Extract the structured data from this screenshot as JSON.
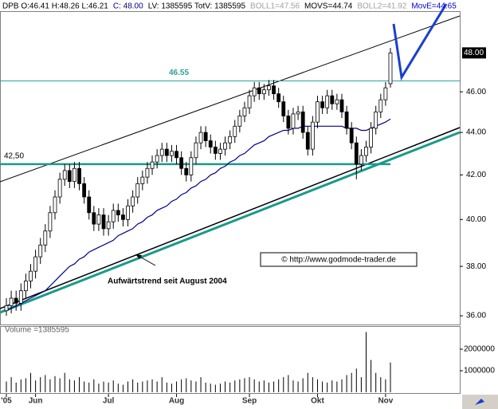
{
  "chart_data": {
    "type": "candlestick",
    "header": {
      "items": [
        "DPB O:46.41 H:48.26 L:46.21",
        "C: 48.00",
        "LV: 1385595 TotV: 1385595",
        "BOLL1=47.56",
        "MOVS=44.74",
        "BOLL2=41.92",
        "MovE=44.65"
      ],
      "colors": [
        "#000000",
        "#000080",
        "#000000",
        "#a0a0a0",
        "#000000",
        "#a0a0a0",
        "#0000cc"
      ]
    },
    "categories": [
      "'05",
      null,
      null,
      null,
      null,
      null,
      "Jun",
      null,
      null,
      null,
      null,
      null,
      null,
      null,
      null,
      null,
      null,
      null,
      null,
      null,
      null,
      "Jul",
      null,
      null,
      null,
      null,
      null,
      null,
      null,
      null,
      null,
      null,
      null,
      null,
      null,
      "Aug",
      null,
      null,
      null,
      null,
      null,
      null,
      null,
      null,
      null,
      null,
      null,
      null,
      null,
      null,
      "Sep",
      null,
      null,
      null,
      null,
      null,
      null,
      null,
      null,
      null,
      null,
      null,
      null,
      null,
      "Okt",
      null,
      null,
      null,
      null,
      null,
      null,
      null,
      null,
      null,
      null,
      null,
      null,
      null,
      "Nov",
      null
    ],
    "open": [
      36.2,
      36.4,
      36.7,
      36.5,
      37.0,
      37.4,
      37.8,
      38.4,
      38.9,
      39.5,
      40.3,
      41.0,
      41.8,
      42.2,
      41.7,
      42.3,
      41.6,
      41.0,
      40.3,
      39.8,
      40.2,
      39.6,
      39.9,
      40.4,
      40.2,
      40.0,
      40.6,
      41.0,
      41.6,
      41.9,
      42.3,
      42.6,
      42.9,
      43.2,
      42.9,
      43.1,
      42.8,
      42.3,
      42.0,
      42.8,
      43.5,
      44.0,
      43.6,
      43.3,
      43.0,
      43.2,
      43.5,
      43.8,
      44.3,
      44.8,
      45.2,
      45.8,
      46.2,
      45.9,
      46.1,
      46.3,
      45.9,
      45.5,
      44.8,
      44.2,
      44.9,
      45.0,
      44.0,
      43.2,
      44.5,
      45.5,
      45.2,
      45.8,
      45.4,
      45.6,
      45.0,
      44.2,
      43.5,
      42.5,
      42.9,
      43.3,
      44.2,
      45.0,
      45.6,
      46.41
    ],
    "high": [
      36.7,
      37.0,
      37.0,
      37.3,
      37.7,
      38.1,
      38.7,
      39.2,
      39.8,
      40.6,
      41.3,
      42.1,
      42.5,
      42.5,
      42.6,
      42.6,
      41.9,
      41.3,
      40.6,
      40.5,
      40.5,
      40.2,
      40.7,
      40.7,
      40.5,
      40.9,
      41.3,
      41.9,
      42.2,
      42.6,
      42.9,
      43.2,
      43.5,
      43.5,
      43.4,
      43.4,
      43.1,
      42.6,
      43.1,
      43.8,
      44.3,
      44.3,
      43.9,
      43.6,
      43.5,
      43.8,
      44.1,
      44.6,
      45.1,
      45.5,
      46.1,
      46.5,
      46.5,
      46.4,
      46.6,
      46.6,
      46.2,
      45.8,
      45.1,
      45.2,
      45.3,
      45.3,
      44.3,
      44.8,
      45.8,
      45.8,
      46.1,
      46.1,
      45.9,
      45.9,
      45.3,
      44.5,
      43.8,
      43.2,
      43.6,
      44.5,
      45.3,
      45.9,
      46.5,
      48.26
    ],
    "low": [
      36.0,
      36.1,
      36.2,
      36.2,
      36.7,
      37.1,
      37.5,
      38.1,
      38.6,
      39.2,
      40.0,
      40.7,
      41.5,
      41.4,
      41.4,
      41.3,
      40.7,
      40.0,
      39.5,
      39.5,
      39.3,
      39.3,
      39.6,
      39.9,
      39.7,
      39.7,
      40.3,
      40.7,
      41.3,
      41.6,
      42.0,
      42.3,
      42.6,
      42.6,
      42.6,
      42.5,
      42.0,
      41.7,
      41.7,
      42.5,
      43.2,
      43.3,
      43.0,
      42.7,
      42.7,
      42.9,
      43.2,
      43.5,
      44.0,
      44.5,
      44.9,
      45.5,
      45.6,
      45.6,
      45.8,
      45.6,
      45.2,
      44.5,
      43.9,
      43.9,
      44.6,
      43.7,
      42.9,
      42.9,
      44.2,
      44.9,
      44.9,
      45.1,
      45.1,
      44.7,
      43.9,
      43.2,
      41.8,
      42.2,
      42.6,
      43.0,
      43.9,
      44.7,
      45.3,
      46.21
    ],
    "close": [
      36.4,
      36.7,
      36.5,
      37.0,
      37.4,
      37.8,
      38.4,
      38.9,
      39.5,
      40.3,
      41.0,
      41.8,
      42.2,
      41.7,
      42.3,
      41.6,
      41.0,
      40.3,
      39.8,
      40.2,
      39.6,
      39.9,
      40.4,
      40.2,
      40.0,
      40.6,
      41.0,
      41.6,
      41.9,
      42.3,
      42.6,
      42.9,
      43.2,
      42.9,
      43.1,
      42.8,
      42.3,
      42.0,
      42.8,
      43.5,
      44.0,
      43.6,
      43.3,
      43.0,
      43.2,
      43.5,
      43.8,
      44.3,
      44.8,
      45.2,
      45.8,
      46.2,
      45.9,
      46.1,
      46.3,
      45.9,
      45.5,
      44.8,
      44.2,
      44.9,
      45.0,
      44.0,
      43.2,
      44.5,
      45.5,
      45.2,
      45.8,
      45.4,
      45.6,
      45.0,
      44.2,
      43.5,
      42.5,
      42.9,
      43.3,
      44.2,
      45.0,
      45.6,
      46.2,
      48.0
    ],
    "ma": {
      "color": "#00008b",
      "values": [
        36.2,
        36.3,
        36.4,
        36.5,
        36.6,
        36.7,
        36.8,
        36.9,
        37.0,
        37.2,
        37.4,
        37.6,
        37.8,
        38.0,
        38.1,
        38.3,
        38.4,
        38.6,
        38.7,
        38.8,
        38.9,
        39.0,
        39.1,
        39.3,
        39.4,
        39.5,
        39.6,
        39.8,
        39.9,
        40.1,
        40.2,
        40.4,
        40.5,
        40.6,
        40.8,
        40.9,
        41.1,
        41.2,
        41.4,
        41.5,
        41.7,
        41.8,
        42.0,
        42.1,
        42.3,
        42.4,
        42.6,
        42.7,
        42.9,
        43.0,
        43.2,
        43.4,
        43.5,
        43.6,
        43.8,
        43.9,
        44.0,
        44.1,
        44.1,
        44.2,
        44.2,
        44.3,
        44.3,
        44.3,
        44.3,
        44.3,
        44.3,
        44.3,
        44.3,
        44.3,
        44.2,
        44.2,
        44.2,
        44.1,
        44.1,
        44.2,
        44.3,
        44.4,
        44.5,
        44.65
      ]
    },
    "log": true,
    "ylim": [
      35.69,
      50.64
    ],
    "yticks": [
      {
        "value": 36,
        "label": "36.00"
      },
      {
        "value": 38,
        "label": "38.00"
      },
      {
        "value": 40,
        "label": "40.00"
      },
      {
        "value": 42,
        "label": "42.00"
      },
      {
        "value": 44,
        "label": "44.00"
      },
      {
        "value": 46,
        "label": "46.00"
      }
    ],
    "last": {
      "value": 48,
      "label": "48.00"
    },
    "levels": [
      46.55,
      {
        "value": 42.5,
        "label": "42,50"
      }
    ],
    "level_colors": [
      "#2aa198",
      "#1a9a8a"
    ],
    "annotations": [
      "Aufwärtstrend seit August 2004",
      "© http://www.godmode-trader.de"
    ],
    "volume": {
      "label": "Volume =1385595",
      "color": "#000000",
      "ylim": [
        0,
        3000000
      ],
      "yticks": [
        1000000,
        2000000
      ],
      "values": [
        500000,
        700000,
        450000,
        600000,
        650000,
        900000,
        550000,
        700000,
        800000,
        600000,
        750000,
        650000,
        900000,
        600000,
        550000,
        700000,
        500000,
        450000,
        600000,
        400000,
        500000,
        450000,
        550000,
        400000,
        350000,
        500000,
        600000,
        450000,
        500000,
        550000,
        600000,
        500000,
        700000,
        450000,
        400000,
        500000,
        600000,
        650000,
        550000,
        500000,
        700000,
        450000,
        400000,
        350000,
        400000,
        500000,
        450000,
        550000,
        600000,
        650000,
        700000,
        600000,
        500000,
        550000,
        450000,
        500000,
        600000,
        700000,
        800000,
        550000,
        500000,
        650000,
        900000,
        700000,
        600000,
        500000,
        450000,
        550000,
        500000,
        600000,
        800000,
        900000,
        1100000,
        700000,
        2800000,
        1500000,
        900000,
        700000,
        600000,
        1385595
      ]
    }
  }
}
